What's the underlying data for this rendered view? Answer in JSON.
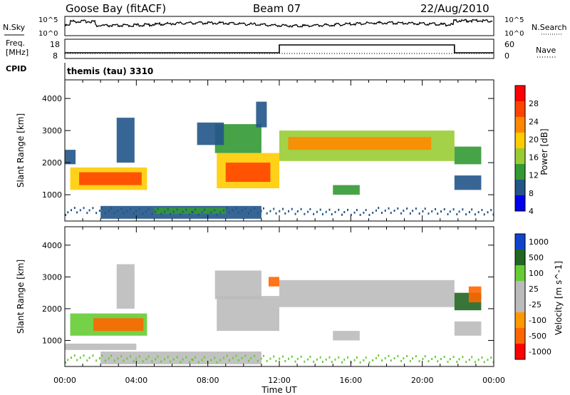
{
  "header": {
    "station": "Goose Bay (fitACF)",
    "beam": "Beam 07",
    "date": "22/Aug/2010"
  },
  "panel_labels": {
    "nsky": "N.Sky",
    "nsearch": "N.Search",
    "freq_line1": "Freq.",
    "freq_line2": "[MHz]",
    "nave": "Nave",
    "cpid": "CPID",
    "cpid_value": "themis (tau) 3310"
  },
  "noise_axis": {
    "top": "10^5",
    "bottom": "10^0"
  },
  "freq_axis": {
    "left_top": "18",
    "left_bottom": "8",
    "right_top": "60",
    "right_bottom": "0"
  },
  "colors": {
    "power": [
      "#ff0000",
      "#ff4400",
      "#ff8800",
      "#ffcc00",
      "#99cc33",
      "#339933",
      "#225588",
      "#0000ee"
    ],
    "velocity": [
      "#1144cc",
      "#226622",
      "#66cc33",
      "#bbbbbb",
      "#bbbbbb",
      "#ff9900",
      "#ff6600",
      "#ff0000"
    ],
    "scatter_gray": "#c4c4bc"
  },
  "chart_data": [
    {
      "type": "heatmap",
      "quantity": "power",
      "ylabel": "Slant Range [km]",
      "yticks": [
        1000,
        2000,
        3000,
        4000
      ],
      "ylim": [
        180,
        4580
      ],
      "xlim": [
        0,
        24
      ],
      "colorbar_label": "Power [dB]",
      "colorbar_ticks": [
        "28",
        "24",
        "20",
        "16",
        "12",
        "8",
        "4"
      ],
      "regions": [
        {
          "t0": 0.3,
          "t1": 4.6,
          "r0": 1150,
          "r1": 1850,
          "level": 3
        },
        {
          "t0": 0.8,
          "t1": 4.3,
          "r0": 1300,
          "r1": 1700,
          "level": 1
        },
        {
          "t0": 0.0,
          "t1": 0.6,
          "r0": 1950,
          "r1": 2400,
          "level": 6
        },
        {
          "t0": 2.9,
          "t1": 3.9,
          "r0": 2000,
          "r1": 3400,
          "level": 6
        },
        {
          "t0": 2.0,
          "t1": 11.0,
          "r0": 250,
          "r1": 650,
          "level": 6
        },
        {
          "t0": 5.0,
          "t1": 9.0,
          "r0": 400,
          "r1": 600,
          "level": 5
        },
        {
          "t0": 8.5,
          "t1": 12.0,
          "r0": 1200,
          "r1": 2300,
          "level": 3
        },
        {
          "t0": 9.0,
          "t1": 11.5,
          "r0": 1400,
          "r1": 2000,
          "level": 1
        },
        {
          "t0": 8.4,
          "t1": 11.0,
          "r0": 2300,
          "r1": 3200,
          "level": 5
        },
        {
          "t0": 12.0,
          "t1": 21.8,
          "r0": 2050,
          "r1": 3000,
          "level": 4
        },
        {
          "t0": 12.5,
          "t1": 20.5,
          "r0": 2400,
          "r1": 2800,
          "level": 2
        },
        {
          "t0": 7.4,
          "t1": 8.9,
          "r0": 2550,
          "r1": 3250,
          "level": 6
        },
        {
          "t0": 15.0,
          "t1": 16.5,
          "r0": 1000,
          "r1": 1300,
          "level": 5
        },
        {
          "t0": 21.8,
          "t1": 23.3,
          "r0": 1150,
          "r1": 1600,
          "level": 6
        },
        {
          "t0": 21.8,
          "t1": 23.3,
          "r0": 1950,
          "r1": 2500,
          "level": 5
        },
        {
          "t0": 10.7,
          "t1": 11.3,
          "r0": 3100,
          "r1": 3900,
          "level": 6
        }
      ]
    },
    {
      "type": "heatmap",
      "quantity": "velocity",
      "ylabel": "Slant Range [km]",
      "xlabel": "Time UT",
      "yticks": [
        1000,
        2000,
        3000,
        4000
      ],
      "ylim": [
        180,
        4580
      ],
      "xlim": [
        0,
        24
      ],
      "xticks": [
        "00:00",
        "04:00",
        "08:00",
        "12:00",
        "16:00",
        "20:00",
        "00:00"
      ],
      "colorbar_label": "Velocity [m s^-1]",
      "colorbar_ticks": [
        "1000",
        "500",
        "100",
        "25",
        "-25",
        "-100",
        "-500",
        "-1000"
      ],
      "regions": [
        {
          "t0": 0.3,
          "t1": 4.6,
          "r0": 1150,
          "r1": 1850,
          "level": 2
        },
        {
          "t0": 1.6,
          "t1": 4.4,
          "r0": 1300,
          "r1": 1700,
          "level": 6
        },
        {
          "t0": 0.0,
          "t1": 4.0,
          "r0": 700,
          "r1": 900,
          "level": 3
        },
        {
          "t0": 2.9,
          "t1": 3.9,
          "r0": 2000,
          "r1": 3400,
          "level": 3
        },
        {
          "t0": 2.0,
          "t1": 11.0,
          "r0": 250,
          "r1": 650,
          "level": 3
        },
        {
          "t0": 8.5,
          "t1": 12.0,
          "r0": 1300,
          "r1": 2400,
          "level": 3
        },
        {
          "t0": 8.4,
          "t1": 11.0,
          "r0": 2300,
          "r1": 3200,
          "level": 3
        },
        {
          "t0": 12.0,
          "t1": 21.8,
          "r0": 2050,
          "r1": 2900,
          "level": 3
        },
        {
          "t0": 15.0,
          "t1": 16.5,
          "r0": 1000,
          "r1": 1300,
          "level": 3
        },
        {
          "t0": 21.8,
          "t1": 23.3,
          "r0": 1150,
          "r1": 1600,
          "level": 3
        },
        {
          "t0": 21.8,
          "t1": 23.3,
          "r0": 1950,
          "r1": 2500,
          "level": 1
        },
        {
          "t0": 22.6,
          "t1": 23.3,
          "r0": 2200,
          "r1": 2700,
          "level": 6
        },
        {
          "t0": 11.4,
          "t1": 12.0,
          "r0": 2700,
          "r1": 3000,
          "level": 6
        }
      ]
    }
  ]
}
